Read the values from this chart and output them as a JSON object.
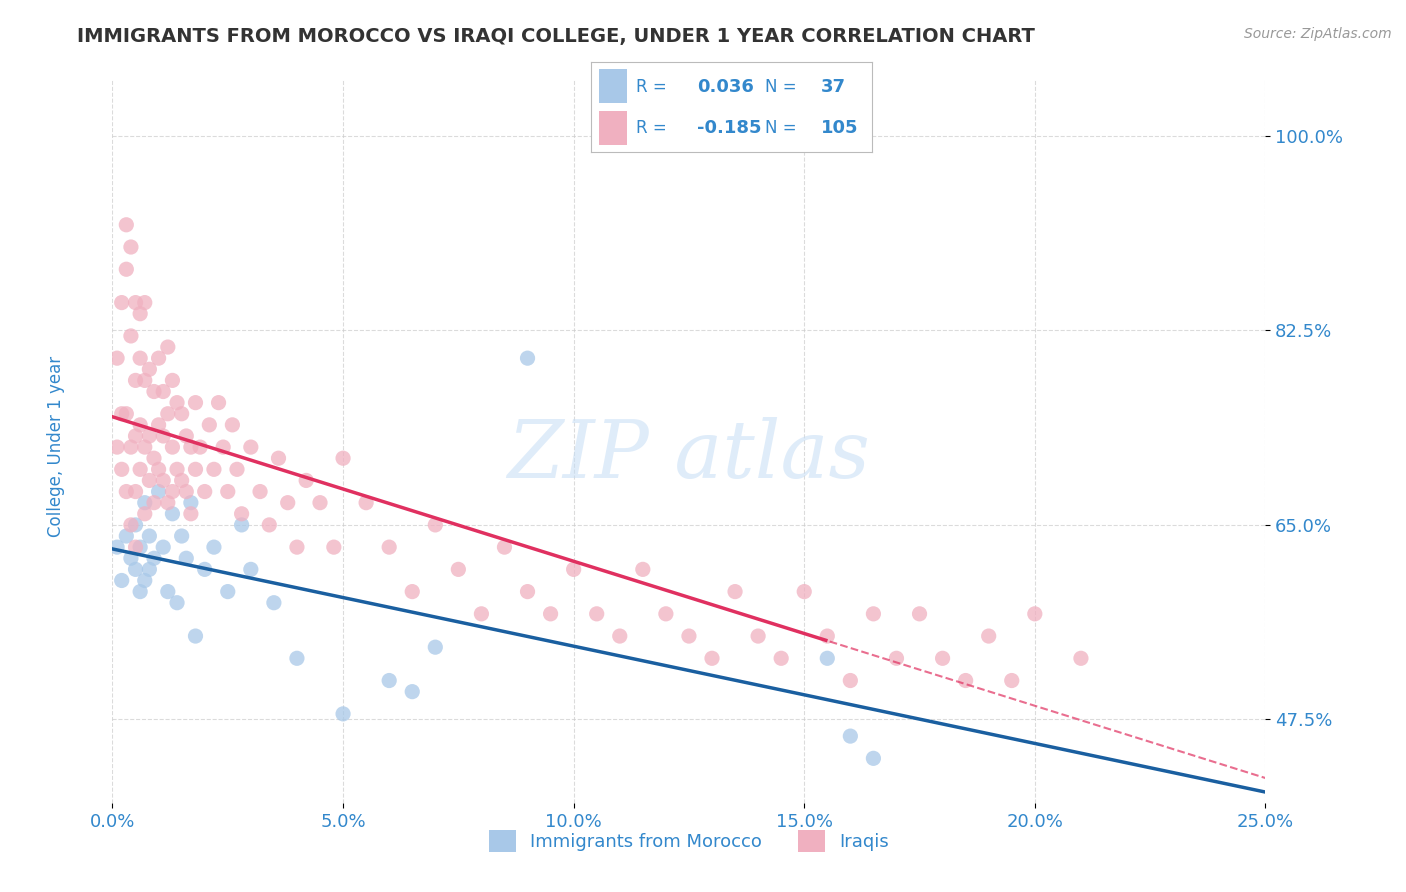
{
  "title": "IMMIGRANTS FROM MOROCCO VS IRAQI COLLEGE, UNDER 1 YEAR CORRELATION CHART",
  "source": "Source: ZipAtlas.com",
  "ylabel": "College, Under 1 year",
  "xlabel": "",
  "xlim": [
    0.0,
    0.25
  ],
  "ylim": [
    0.4,
    1.05
  ],
  "yticks": [
    0.475,
    0.65,
    0.825,
    1.0
  ],
  "ytick_labels": [
    "47.5%",
    "65.0%",
    "82.5%",
    "100.0%"
  ],
  "xticks": [
    0.0,
    0.05,
    0.1,
    0.15,
    0.2,
    0.25
  ],
  "xtick_labels": [
    "0.0%",
    "5.0%",
    "10.0%",
    "15.0%",
    "20.0%",
    "25.0%"
  ],
  "morocco_color": "#a8c8e8",
  "iraq_color": "#f0b0c0",
  "morocco_trend_color": "#1a5fa0",
  "iraq_trend_color": "#e03060",
  "morocco_R": 0.036,
  "morocco_N": 37,
  "iraq_R": -0.185,
  "iraq_N": 105,
  "legend_text_color": "#3388cc",
  "watermark": "ZIP atlas",
  "background_color": "#ffffff",
  "grid_color": "#cccccc",
  "title_color": "#333333",
  "axis_label_color": "#3388cc",
  "tick_label_color": "#3388cc",
  "source_color": "#999999",
  "morocco_x": [
    0.001,
    0.002,
    0.003,
    0.004,
    0.005,
    0.005,
    0.006,
    0.006,
    0.007,
    0.007,
    0.008,
    0.008,
    0.009,
    0.01,
    0.011,
    0.012,
    0.013,
    0.014,
    0.015,
    0.016,
    0.017,
    0.018,
    0.02,
    0.022,
    0.025,
    0.028,
    0.03,
    0.035,
    0.04,
    0.05,
    0.06,
    0.065,
    0.07,
    0.09,
    0.155,
    0.16,
    0.165
  ],
  "morocco_y": [
    0.63,
    0.6,
    0.64,
    0.62,
    0.61,
    0.65,
    0.63,
    0.59,
    0.67,
    0.6,
    0.64,
    0.61,
    0.62,
    0.68,
    0.63,
    0.59,
    0.66,
    0.58,
    0.64,
    0.62,
    0.67,
    0.55,
    0.61,
    0.63,
    0.59,
    0.65,
    0.61,
    0.58,
    0.53,
    0.48,
    0.51,
    0.5,
    0.54,
    0.8,
    0.53,
    0.46,
    0.44
  ],
  "iraq_x": [
    0.001,
    0.001,
    0.002,
    0.002,
    0.002,
    0.003,
    0.003,
    0.003,
    0.003,
    0.004,
    0.004,
    0.004,
    0.004,
    0.005,
    0.005,
    0.005,
    0.005,
    0.005,
    0.006,
    0.006,
    0.006,
    0.006,
    0.007,
    0.007,
    0.007,
    0.007,
    0.008,
    0.008,
    0.008,
    0.009,
    0.009,
    0.009,
    0.01,
    0.01,
    0.01,
    0.011,
    0.011,
    0.011,
    0.012,
    0.012,
    0.012,
    0.013,
    0.013,
    0.013,
    0.014,
    0.014,
    0.015,
    0.015,
    0.016,
    0.016,
    0.017,
    0.017,
    0.018,
    0.018,
    0.019,
    0.02,
    0.021,
    0.022,
    0.023,
    0.024,
    0.025,
    0.026,
    0.027,
    0.028,
    0.03,
    0.032,
    0.034,
    0.036,
    0.038,
    0.04,
    0.042,
    0.045,
    0.048,
    0.05,
    0.055,
    0.06,
    0.065,
    0.07,
    0.075,
    0.08,
    0.085,
    0.09,
    0.095,
    0.1,
    0.105,
    0.11,
    0.115,
    0.12,
    0.125,
    0.13,
    0.135,
    0.14,
    0.145,
    0.15,
    0.155,
    0.16,
    0.165,
    0.17,
    0.175,
    0.18,
    0.185,
    0.19,
    0.195,
    0.2,
    0.21
  ],
  "iraq_y": [
    0.72,
    0.8,
    0.75,
    0.85,
    0.7,
    0.88,
    0.75,
    0.68,
    0.92,
    0.82,
    0.72,
    0.9,
    0.65,
    0.78,
    0.85,
    0.73,
    0.68,
    0.63,
    0.8,
    0.74,
    0.7,
    0.84,
    0.78,
    0.72,
    0.85,
    0.66,
    0.79,
    0.73,
    0.69,
    0.77,
    0.71,
    0.67,
    0.8,
    0.74,
    0.7,
    0.77,
    0.73,
    0.69,
    0.81,
    0.75,
    0.67,
    0.78,
    0.72,
    0.68,
    0.76,
    0.7,
    0.75,
    0.69,
    0.73,
    0.68,
    0.72,
    0.66,
    0.7,
    0.76,
    0.72,
    0.68,
    0.74,
    0.7,
    0.76,
    0.72,
    0.68,
    0.74,
    0.7,
    0.66,
    0.72,
    0.68,
    0.65,
    0.71,
    0.67,
    0.63,
    0.69,
    0.67,
    0.63,
    0.71,
    0.67,
    0.63,
    0.59,
    0.65,
    0.61,
    0.57,
    0.63,
    0.59,
    0.57,
    0.61,
    0.57,
    0.55,
    0.61,
    0.57,
    0.55,
    0.53,
    0.59,
    0.55,
    0.53,
    0.59,
    0.55,
    0.51,
    0.57,
    0.53,
    0.57,
    0.53,
    0.51,
    0.55,
    0.51,
    0.57,
    0.53
  ]
}
